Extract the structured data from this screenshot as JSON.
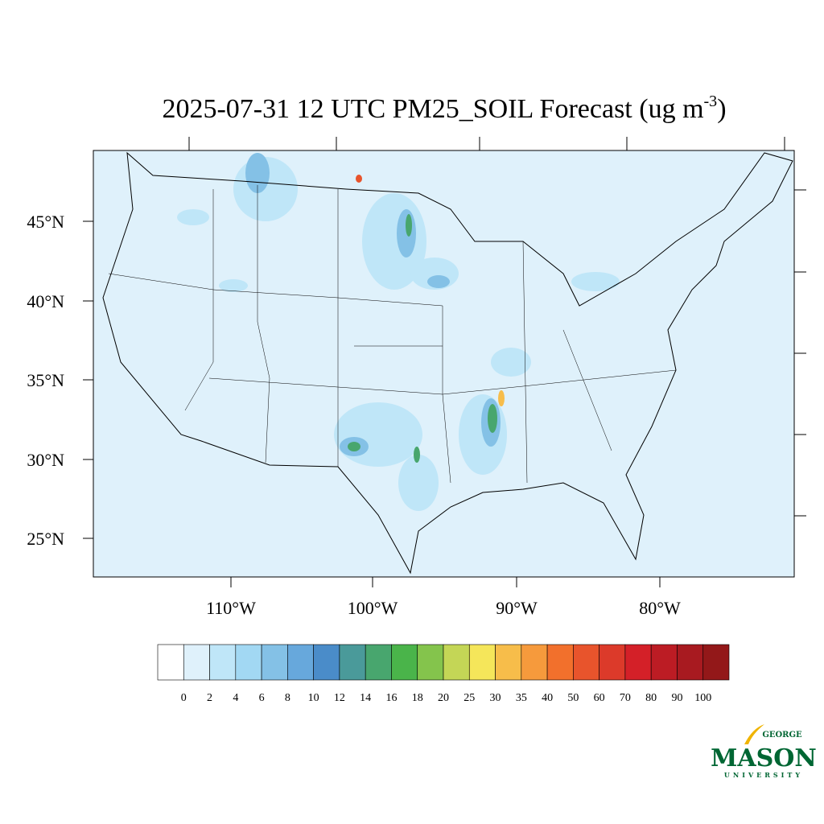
{
  "header": {
    "title": "2025-07-31 12 UTC PM25_SOIL Forecast (ug m",
    "title_superscript": "-3",
    "title_end": ")"
  },
  "map": {
    "lat_labels": [
      "45°N",
      "40°N",
      "35°N",
      "30°N",
      "25°N"
    ],
    "lon_labels": [
      "110°W",
      "100°W",
      "90°W",
      "80°W"
    ]
  },
  "colorbar": {
    "levels": [
      0,
      2,
      4,
      6,
      8,
      10,
      12,
      14,
      16,
      18,
      20,
      25,
      30,
      35,
      40,
      50,
      60,
      70,
      80,
      90,
      100
    ],
    "colors": [
      "#ffffff",
      "#dff1fb",
      "#bfe6f8",
      "#a2d8f3",
      "#84c1e6",
      "#67a8dc",
      "#4a8cc9",
      "#4a9a9a",
      "#48a66e",
      "#4ab44a",
      "#84c44c",
      "#c4d656",
      "#f5e65a",
      "#f7bd4a",
      "#f69a3c",
      "#f2702c",
      "#e8542c",
      "#dc3a2a",
      "#d42028",
      "#bc1c24",
      "#a81a20",
      "#931819"
    ]
  },
  "logo": {
    "top": "GEORGE",
    "main": "MASON",
    "bottom": "UNIVERSITY"
  }
}
